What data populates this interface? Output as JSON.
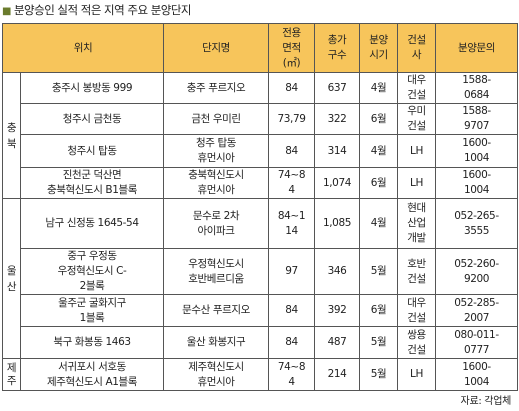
{
  "title": "분양승인 실적 적은 지역 주요 분양단지",
  "headers": [
    "위치",
    "단지명",
    "전용\n면적\n(㎡)",
    "총가\n구수",
    "분양\n시기",
    "건설\n사",
    "분양문의"
  ],
  "regions": {
    "chungbuk": "충\n북",
    "ulsan": "울\n산",
    "jeju": "제\n주"
  },
  "rows": [
    {
      "location": "충주시 봉방동 999",
      "complex": "충주 푸르지오",
      "area": "84",
      "units": "637",
      "period": "4월",
      "builder": "대우\n건설",
      "contact": "1588-\n0684"
    },
    {
      "location": "청주시 금천동",
      "complex": "금천 우미린",
      "area": "73,79",
      "units": "322",
      "period": "6월",
      "builder": "우미\n건설",
      "contact": "1588-\n9707"
    },
    {
      "location": "청주시 탑동",
      "complex": "청주 탑동\n휴먼시아",
      "area": "84",
      "units": "314",
      "period": "4월",
      "builder": "LH",
      "contact": "1600-\n1004"
    },
    {
      "location": "진천군 덕산면\n충북혁신도시 B1블록",
      "complex": "충북혁신도시\n휴먼시아",
      "area": "74~8\n4",
      "units": "1,074",
      "period": "6월",
      "builder": "LH",
      "contact": "1600-\n1004"
    },
    {
      "location": "남구 신정동 1645-54",
      "complex": "문수로 2차\n아이파크",
      "area": "84~1\n14",
      "units": "1,085",
      "period": "4월",
      "builder": "현대\n산업\n개발",
      "contact": "052-265-\n3555"
    },
    {
      "location": "중구 우정동\n우정혁신도시 C-\n2블록",
      "complex": "우정혁신도시\n호반베르디움",
      "area": "97",
      "units": "346",
      "period": "5월",
      "builder": "호반\n건설",
      "contact": "052-260-\n9200"
    },
    {
      "location": "울주군 굴화지구\n1블록",
      "complex": "문수산 푸르지오",
      "area": "84",
      "units": "392",
      "period": "6월",
      "builder": "대우\n건설",
      "contact": "052-285-\n2007"
    },
    {
      "location": "북구 화봉동 1463",
      "complex": "울산 화봉지구",
      "area": "84",
      "units": "487",
      "period": "5월",
      "builder": "쌍용\n건설",
      "contact": "080-011-\n0777"
    },
    {
      "location": "서귀포시 서호동\n제주혁신도시 A1블록",
      "complex": "제주혁신도시\n휴먼시아",
      "area": "74~8\n4",
      "units": "214",
      "period": "5월",
      "builder": "LH",
      "contact": "1600-\n1004"
    }
  ],
  "source": "자료: 각업체"
}
